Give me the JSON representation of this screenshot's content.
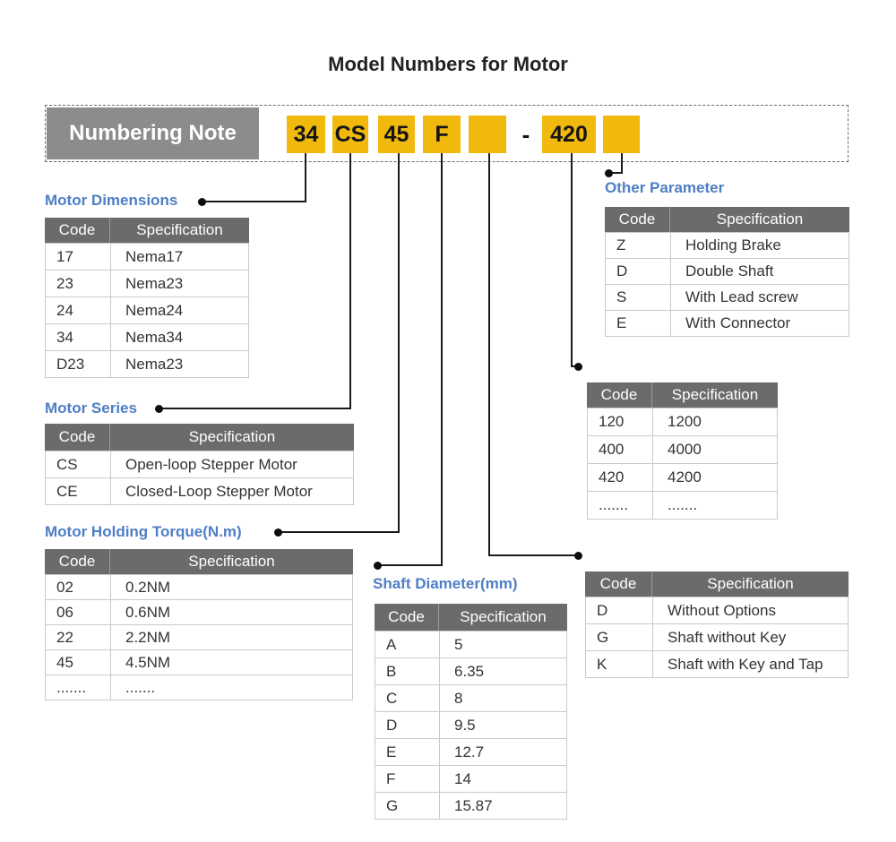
{
  "title": "Model Numbers for Motor",
  "numbering_note": "Numbering Note",
  "model": {
    "segments": [
      "34",
      "CS",
      "45",
      "F",
      "",
      "420",
      ""
    ],
    "separator": "-"
  },
  "sections": {
    "dimensions": {
      "label": "Motor Dimensions",
      "columns": [
        "Code",
        "Specification"
      ],
      "rows": [
        {
          "code": "17",
          "spec": "Nema17"
        },
        {
          "code": "23",
          "spec": "Nema23"
        },
        {
          "code": "24",
          "spec": "Nema24"
        },
        {
          "code": "34",
          "spec": "Nema34"
        },
        {
          "code": "D23",
          "spec": "Nema23"
        }
      ]
    },
    "series": {
      "label": "Motor Series",
      "columns": [
        "Code",
        "Specification"
      ],
      "rows": [
        {
          "code": "CS",
          "spec": "Open-loop Stepper Motor"
        },
        {
          "code": "CE",
          "spec": "Closed-Loop Stepper Motor"
        }
      ]
    },
    "torque": {
      "label": "Motor Holding Torque(N.m)",
      "columns": [
        "Code",
        "Specification"
      ],
      "rows": [
        {
          "code": "02",
          "spec": "0.2NM"
        },
        {
          "code": "06",
          "spec": "0.6NM"
        },
        {
          "code": "22",
          "spec": "2.2NM"
        },
        {
          "code": "45",
          "spec": "4.5NM"
        },
        {
          "code": ".......",
          "spec": "......."
        }
      ]
    },
    "shaft": {
      "label": "Shaft Diameter(mm)",
      "columns": [
        "Code",
        "Specification"
      ],
      "rows": [
        {
          "code": "A",
          "spec": "5"
        },
        {
          "code": "B",
          "spec": "6.35"
        },
        {
          "code": "C",
          "spec": "8"
        },
        {
          "code": "D",
          "spec": "9.5"
        },
        {
          "code": "E",
          "spec": "12.7"
        },
        {
          "code": "F",
          "spec": "14"
        },
        {
          "code": "G",
          "spec": "15.87"
        }
      ]
    },
    "other": {
      "label": "Other Parameter",
      "columns": [
        "Code",
        "Specification"
      ],
      "rows": [
        {
          "code": "Z",
          "spec": "Holding Brake"
        },
        {
          "code": "D",
          "spec": "Double Shaft"
        },
        {
          "code": "S",
          "spec": "With Lead screw"
        },
        {
          "code": "E",
          "spec": "With Connector"
        }
      ]
    },
    "table_420": {
      "columns": [
        "Code",
        "Specification"
      ],
      "rows": [
        {
          "code": "120",
          "spec": "1200"
        },
        {
          "code": "400",
          "spec": "4000"
        },
        {
          "code": "420",
          "spec": "4200"
        },
        {
          "code": ".......",
          "spec": "......."
        }
      ]
    },
    "shaft_options": {
      "columns": [
        "Code",
        "Specification"
      ],
      "rows": [
        {
          "code": "D",
          "spec": "Without Options"
        },
        {
          "code": "G",
          "spec": "Shaft without Key"
        },
        {
          "code": "K",
          "spec": "Shaft with Key and Tap"
        }
      ]
    }
  },
  "colors": {
    "accent_yellow": "#F1B90E",
    "label_blue": "#4E7EC5",
    "header_gray": "#6B6B6B",
    "note_gray": "#8C8C8C"
  }
}
